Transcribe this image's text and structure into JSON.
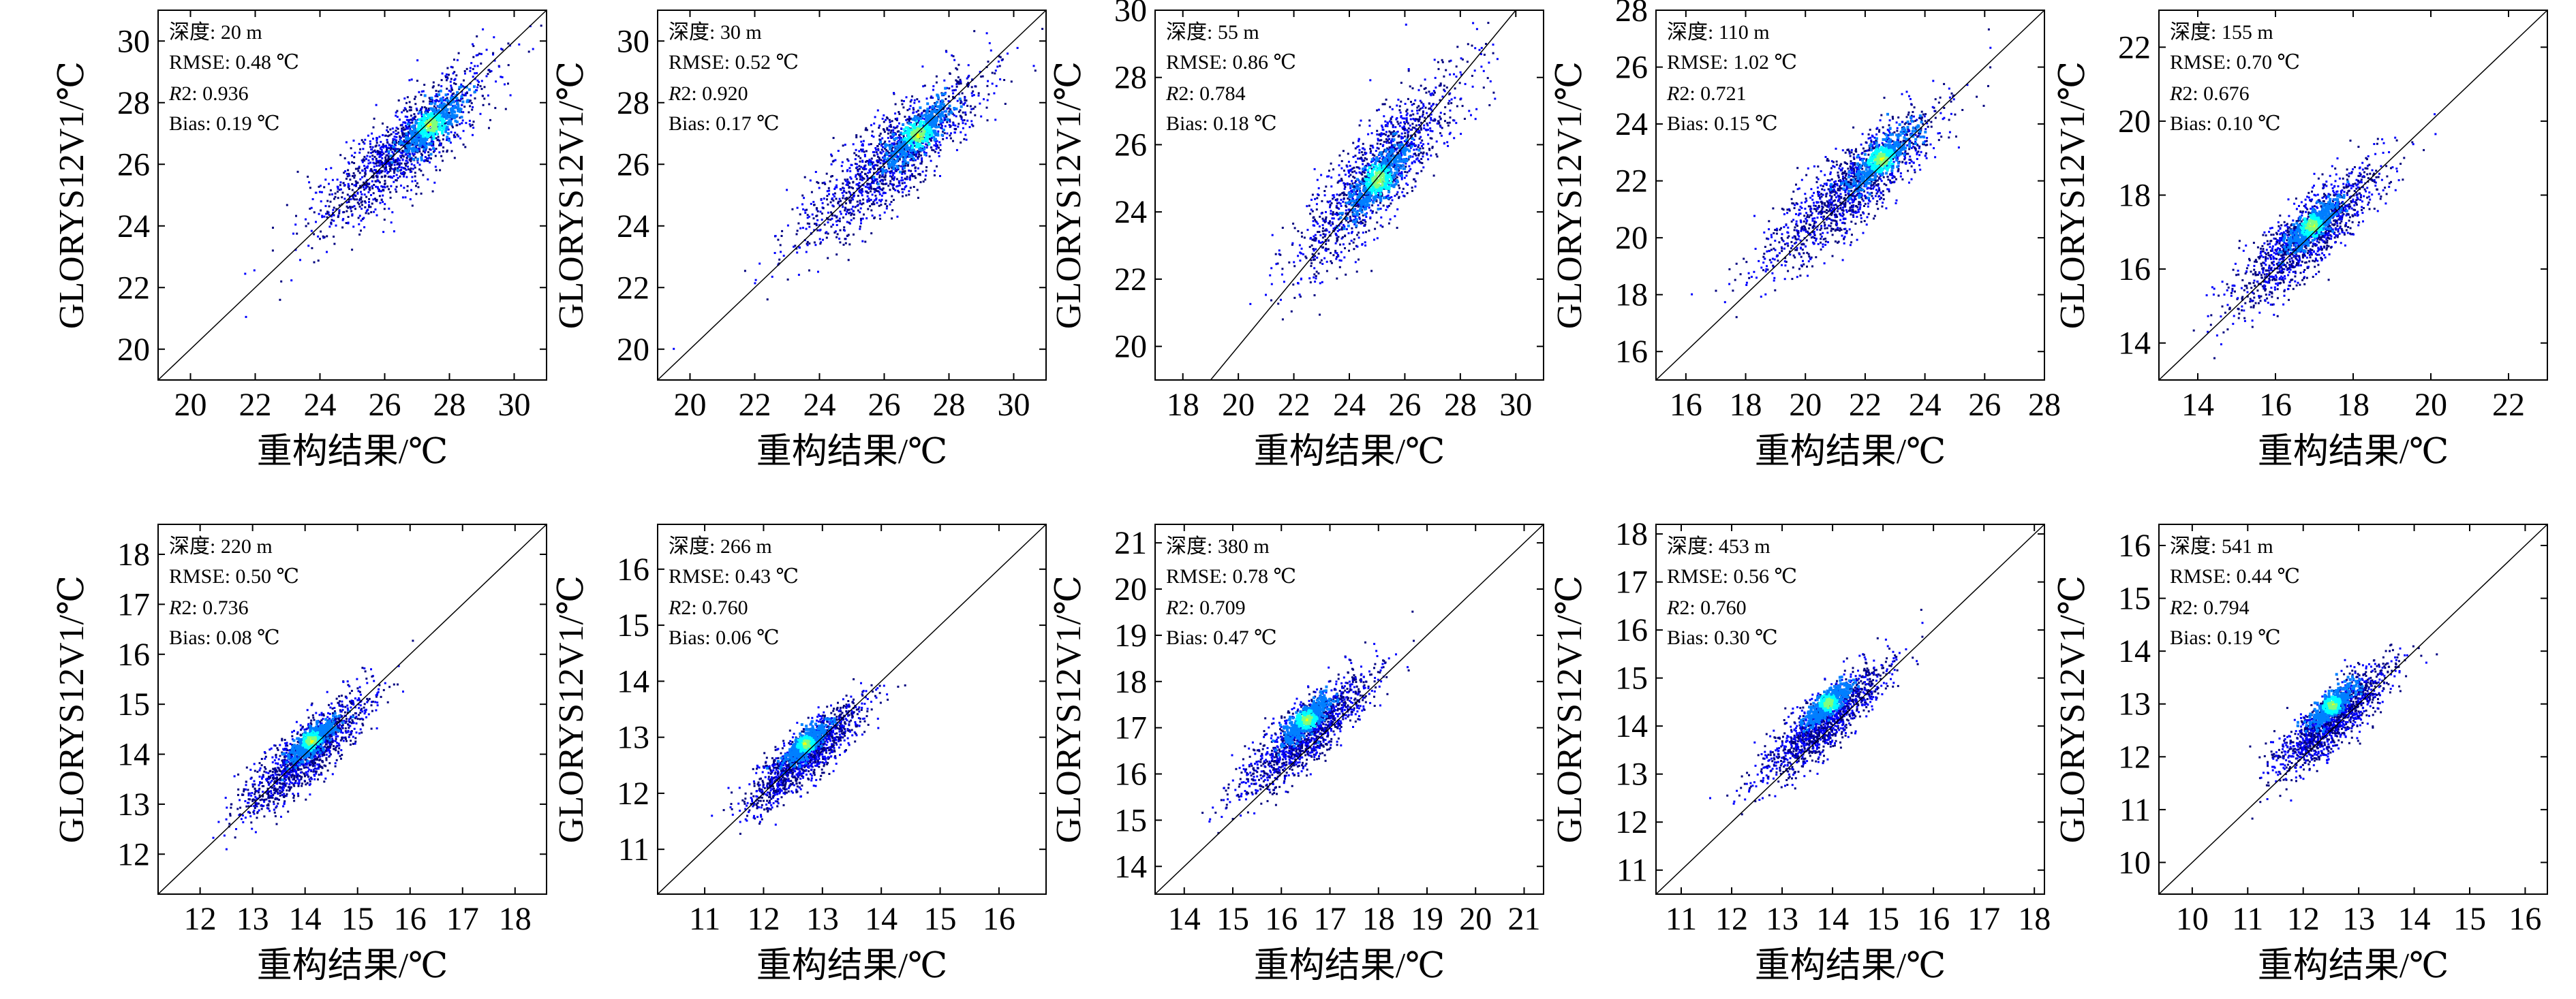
{
  "chart_data": [
    {
      "type": "scatter",
      "depth_label": "深度: 20 m",
      "rmse_label": "RMSE: 0.48 ℃",
      "r2_symbol": "R",
      "r2_value": "2: 0.936",
      "bias_label": "Bias: 0.19 ℃",
      "xlabel": "重构结果/℃",
      "ylabel": "GLORYS12V1/℃",
      "xlim": [
        19,
        31
      ],
      "ylim": [
        19,
        31
      ],
      "xticks": [
        20,
        22,
        24,
        26,
        28,
        30
      ],
      "yticks": [
        20,
        22,
        24,
        26,
        28,
        30
      ],
      "tick_labels_x": [
        "20",
        "22",
        "24",
        "26",
        "28",
        "30"
      ],
      "tick_labels_y": [
        "20",
        "22",
        "24",
        "26",
        "28",
        "30"
      ],
      "density": {
        "center": [
          26.5,
          26.5
        ],
        "spread": 1.8,
        "hot": [
          27.4,
          27.3
        ]
      }
    },
    {
      "type": "scatter",
      "depth_label": "深度: 30 m",
      "rmse_label": "RMSE: 0.52 ℃",
      "r2_symbol": "R",
      "r2_value": "2: 0.920",
      "bias_label": "Bias: 0.17 ℃",
      "xlabel": "重构结果/℃",
      "ylabel": "GLORYS12V1/℃",
      "xlim": [
        19,
        31
      ],
      "ylim": [
        19,
        31
      ],
      "xticks": [
        20,
        22,
        24,
        26,
        28,
        30
      ],
      "yticks": [
        20,
        22,
        24,
        26,
        28,
        30
      ],
      "tick_labels_x": [
        "20",
        "22",
        "24",
        "26",
        "28",
        "30"
      ],
      "tick_labels_y": [
        "20",
        "22",
        "24",
        "26",
        "28",
        "30"
      ],
      "density": {
        "center": [
          26.2,
          26.2
        ],
        "spread": 1.9,
        "hot": [
          27.0,
          27.0
        ]
      }
    },
    {
      "type": "scatter",
      "depth_label": "深度: 55 m",
      "rmse_label": "RMSE: 0.86 ℃",
      "r2_symbol": "R",
      "r2_value": "2: 0.784",
      "bias_label": "Bias: 0.18 ℃",
      "xlabel": "重构结果/℃",
      "ylabel": "GLORYS12V1/℃",
      "xlim": [
        17,
        31
      ],
      "ylim": [
        19,
        30
      ],
      "xticks": [
        18,
        20,
        22,
        24,
        26,
        28,
        30
      ],
      "yticks": [
        20,
        22,
        24,
        26,
        28,
        30
      ],
      "tick_labels_x": [
        "18",
        "20",
        "22",
        "24",
        "26",
        "28",
        "30"
      ],
      "tick_labels_y": [
        "20",
        "22",
        "24",
        "26",
        "28",
        "30"
      ],
      "density": {
        "center": [
          25.0,
          25.2
        ],
        "spread": 2.0,
        "hot": [
          25.0,
          25.0
        ]
      }
    },
    {
      "type": "scatter",
      "depth_label": "深度: 110 m",
      "rmse_label": "RMSE: 1.02 ℃",
      "r2_symbol": "R",
      "r2_value": "2: 0.721",
      "bias_label": "Bias: 0.15 ℃",
      "xlabel": "重构结果/℃",
      "ylabel": "GLORYS12V1/℃",
      "xlim": [
        15,
        28
      ],
      "ylim": [
        15,
        28
      ],
      "xticks": [
        16,
        18,
        20,
        22,
        24,
        26,
        28
      ],
      "yticks": [
        16,
        18,
        20,
        22,
        24,
        26,
        28
      ],
      "tick_labels_x": [
        "16",
        "18",
        "20",
        "22",
        "24",
        "26",
        "28"
      ],
      "tick_labels_y": [
        "16",
        "18",
        "20",
        "22",
        "24",
        "26",
        "28"
      ],
      "density": {
        "center": [
          21.5,
          21.8
        ],
        "spread": 1.9,
        "hot": [
          22.5,
          22.8
        ]
      }
    },
    {
      "type": "scatter",
      "depth_label": "深度: 155 m",
      "rmse_label": "RMSE: 0.70 ℃",
      "r2_symbol": "R",
      "r2_value": "2: 0.676",
      "bias_label": "Bias: 0.10 ℃",
      "xlabel": "重构结果/℃",
      "ylabel": "GLORYS12V1/℃",
      "xlim": [
        13,
        23
      ],
      "ylim": [
        13,
        23
      ],
      "xticks": [
        14,
        16,
        18,
        20,
        22
      ],
      "yticks": [
        14,
        16,
        18,
        20,
        22
      ],
      "tick_labels_x": [
        "14",
        "16",
        "18",
        "20",
        "22"
      ],
      "tick_labels_y": [
        "14",
        "16",
        "18",
        "20",
        "22"
      ],
      "density": {
        "center": [
          16.8,
          16.9
        ],
        "spread": 1.3,
        "hot": [
          16.9,
          17.2
        ]
      }
    },
    {
      "type": "scatter",
      "depth_label": "深度: 220 m",
      "rmse_label": "RMSE: 0.50 ℃",
      "r2_symbol": "R",
      "r2_value": "2: 0.736",
      "bias_label": "Bias: 0.08 ℃",
      "xlabel": "重构结果/℃",
      "ylabel": "GLORYS12V1/℃",
      "xlim": [
        11.2,
        18.6
      ],
      "ylim": [
        11.2,
        18.6
      ],
      "xticks": [
        12,
        13,
        14,
        15,
        16,
        17,
        18
      ],
      "yticks": [
        12,
        13,
        14,
        15,
        16,
        17,
        18
      ],
      "tick_labels_x": [
        "12",
        "13",
        "14",
        "15",
        "16",
        "17",
        "18"
      ],
      "tick_labels_y": [
        "12",
        "13",
        "14",
        "15",
        "16",
        "17",
        "18"
      ],
      "density": {
        "center": [
          14.0,
          14.0
        ],
        "spread": 0.8,
        "hot": [
          14.1,
          14.3
        ]
      }
    },
    {
      "type": "scatter",
      "depth_label": "深度: 266 m",
      "rmse_label": "RMSE: 0.43 ℃",
      "r2_symbol": "R",
      "r2_value": "2: 0.760",
      "bias_label": "Bias: 0.06 ℃",
      "xlabel": "重构结果/℃",
      "ylabel": "GLORYS12V1/℃",
      "xlim": [
        10.2,
        16.8
      ],
      "ylim": [
        10.2,
        16.8
      ],
      "xticks": [
        11,
        12,
        13,
        14,
        15,
        16
      ],
      "yticks": [
        11,
        12,
        13,
        14,
        15,
        16
      ],
      "tick_labels_x": [
        "11",
        "12",
        "13",
        "14",
        "15",
        "16"
      ],
      "tick_labels_y": [
        "11",
        "12",
        "13",
        "14",
        "15",
        "16"
      ],
      "density": {
        "center": [
          12.7,
          12.7
        ],
        "spread": 0.65,
        "hot": [
          12.7,
          12.9
        ]
      }
    },
    {
      "type": "scatter",
      "depth_label": "深度: 380 m",
      "rmse_label": "RMSE: 0.78 ℃",
      "r2_symbol": "R",
      "r2_value": "2: 0.709",
      "bias_label": "Bias: 0.47 ℃",
      "xlabel": "重构结果/℃",
      "ylabel": "GLORYS12V1/℃",
      "xlim": [
        13.4,
        21.4
      ],
      "ylim": [
        13.4,
        21.4
      ],
      "xticks": [
        14,
        15,
        16,
        17,
        18,
        19,
        20,
        21
      ],
      "yticks": [
        14,
        15,
        16,
        17,
        18,
        19,
        20,
        21
      ],
      "tick_labels_x": [
        "14",
        "15",
        "16",
        "17",
        "18",
        "19",
        "20",
        "21"
      ],
      "tick_labels_y": [
        "14",
        "15",
        "16",
        "17",
        "18",
        "19",
        "20",
        "21"
      ],
      "density": {
        "center": [
          16.5,
          16.9
        ],
        "spread": 0.9,
        "hot": [
          16.5,
          17.2
        ]
      }
    },
    {
      "type": "scatter",
      "depth_label": "深度: 453 m",
      "rmse_label": "RMSE: 0.56 ℃",
      "r2_symbol": "R",
      "r2_value": "2: 0.760",
      "bias_label": "Bias: 0.30 ℃",
      "xlabel": "重构结果/℃",
      "ylabel": "GLORYS12V1/℃",
      "xlim": [
        10.5,
        18.2
      ],
      "ylim": [
        10.5,
        18.2
      ],
      "xticks": [
        11,
        12,
        13,
        14,
        15,
        16,
        17,
        18
      ],
      "yticks": [
        11,
        12,
        13,
        14,
        15,
        16,
        17,
        18
      ],
      "tick_labels_x": [
        "11",
        "12",
        "13",
        "14",
        "15",
        "16",
        "17",
        "18"
      ],
      "tick_labels_y": [
        "11",
        "12",
        "13",
        "14",
        "15",
        "16",
        "17",
        "18"
      ],
      "density": {
        "center": [
          13.8,
          14.1
        ],
        "spread": 0.8,
        "hot": [
          13.9,
          14.5
        ]
      }
    },
    {
      "type": "scatter",
      "depth_label": "深度: 541 m",
      "rmse_label": "RMSE: 0.44 ℃",
      "r2_symbol": "R",
      "r2_value": "2: 0.794",
      "bias_label": "Bias: 0.19 ℃",
      "xlabel": "重构结果/℃",
      "ylabel": "GLORYS12V1/℃",
      "xlim": [
        9.4,
        16.4
      ],
      "ylim": [
        9.4,
        16.4
      ],
      "xticks": [
        10,
        11,
        12,
        13,
        14,
        15,
        16
      ],
      "yticks": [
        10,
        11,
        12,
        13,
        14,
        15,
        16
      ],
      "tick_labels_x": [
        "10",
        "11",
        "12",
        "13",
        "14",
        "15",
        "16"
      ],
      "tick_labels_y": [
        "10",
        "11",
        "12",
        "13",
        "14",
        "15",
        "16"
      ],
      "density": {
        "center": [
          12.5,
          12.7
        ],
        "spread": 0.7,
        "hot": [
          12.5,
          13.0
        ]
      }
    }
  ],
  "colormap": [
    "#00007f",
    "#0000ff",
    "#007fff",
    "#00ffff",
    "#7fff7f",
    "#ffff00",
    "#ff7f00"
  ]
}
